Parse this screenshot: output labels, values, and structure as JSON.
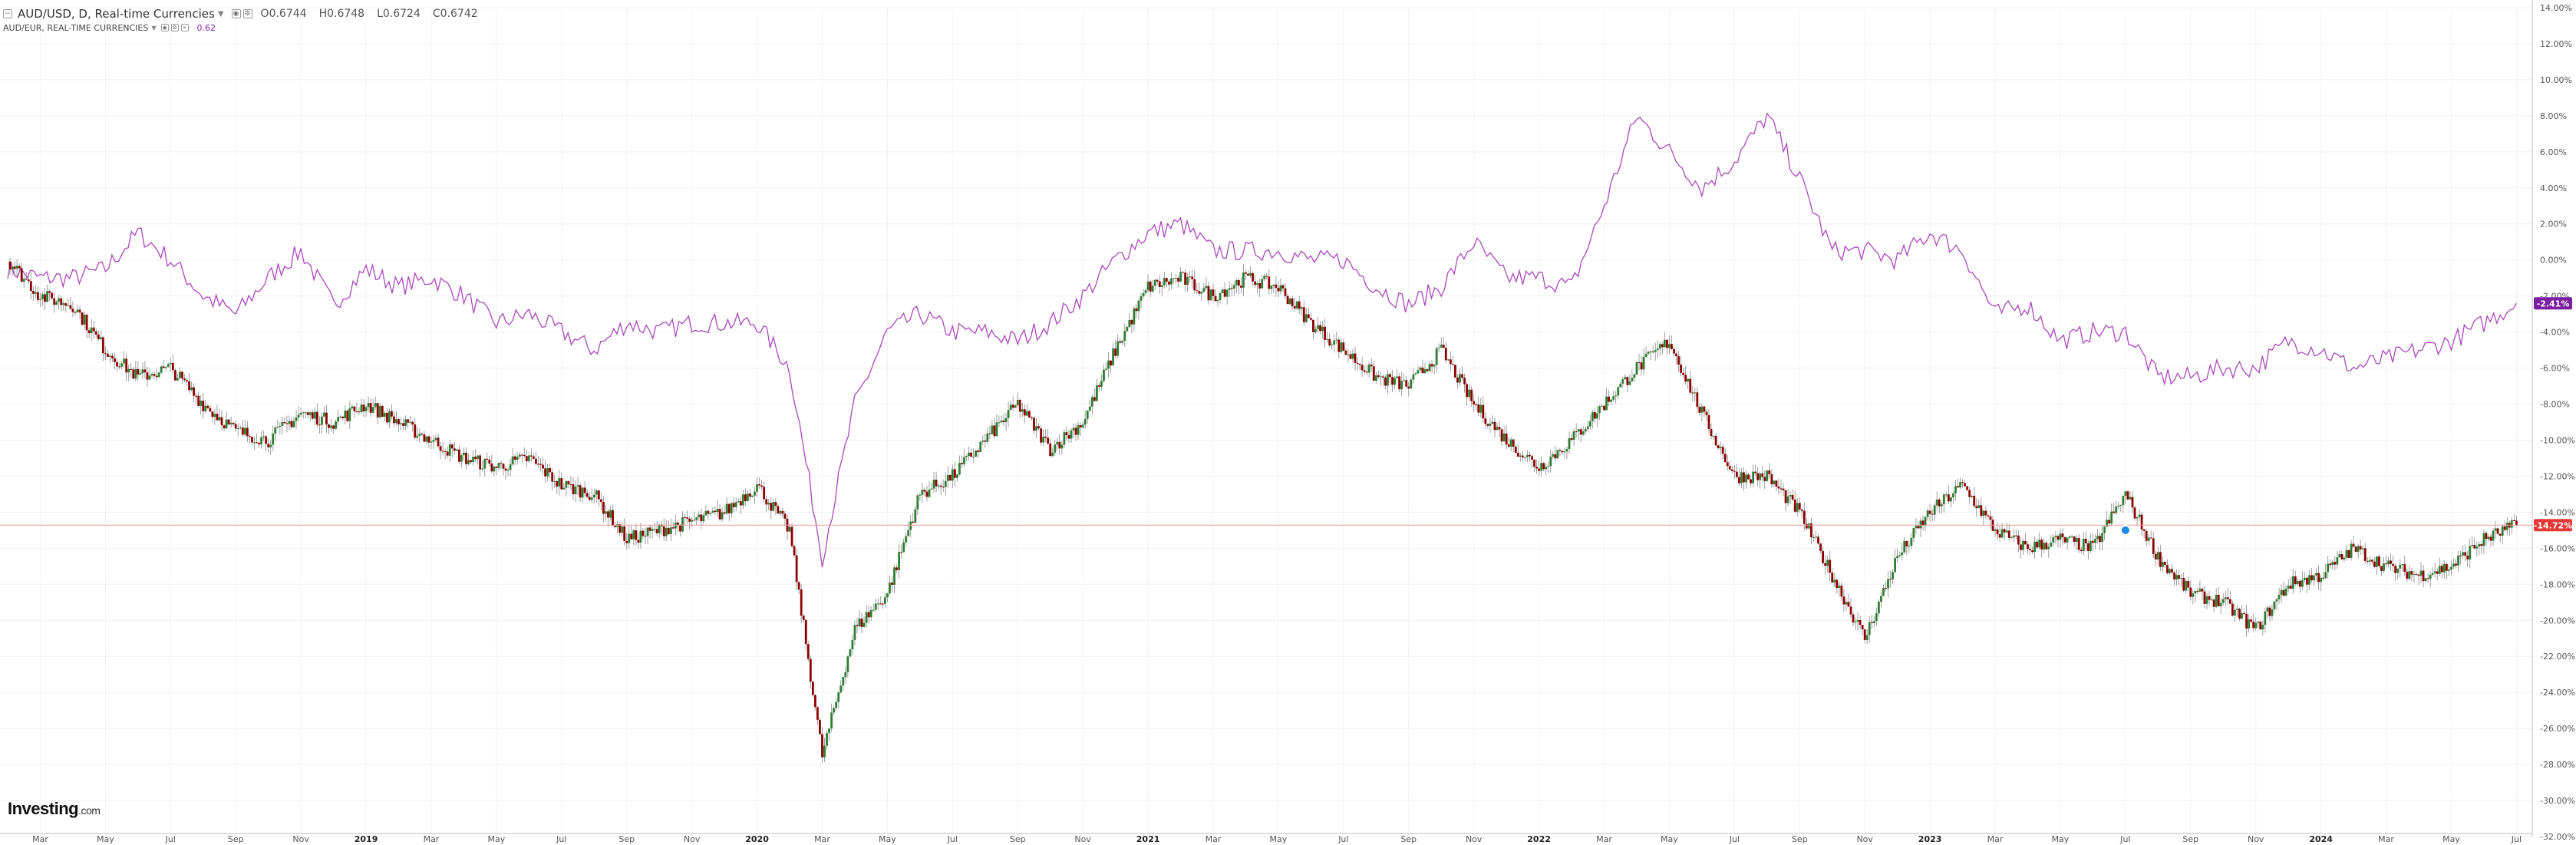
{
  "legend": {
    "main_symbol": "AUD/USD, D, Real-time Currencies",
    "open": "O0.6744",
    "high": "H0.6748",
    "low": "L0.6724",
    "close": "C0.6742",
    "sub_symbol": "AUD/EUR, REAL-TIME CURRENCIES",
    "sub_value": "0.62"
  },
  "logo": {
    "brand": "Investing",
    "suffix": ".com"
  },
  "colors": {
    "up": "#2e7d32",
    "down": "#8b0000",
    "compare": "#ab47bc",
    "last_label": "#e53935",
    "compare_label": "#7b1fa2",
    "hline": "#ef9a9a"
  },
  "chart_data": {
    "type": "line",
    "title": "AUD/USD, D, Real-time Currencies",
    "xlabel": "",
    "ylabel": "",
    "y_unit": "percent change",
    "ylim": [
      -32,
      14
    ],
    "y_ticks": [
      "14.00%",
      "12.00%",
      "10.00%",
      "8.00%",
      "6.00%",
      "4.00%",
      "2.00%",
      "0.00%",
      "-2.00%",
      "-4.00%",
      "-6.00%",
      "-8.00%",
      "-10.00%",
      "-12.00%",
      "-14.00%",
      "-16.00%",
      "-18.00%",
      "-20.00%",
      "-22.00%",
      "-24.00%",
      "-26.00%",
      "-28.00%",
      "-30.00%",
      "-32.00%"
    ],
    "x_ticks": [
      "Mar",
      "May",
      "Jul",
      "Sep",
      "Nov",
      "2019",
      "Mar",
      "May",
      "Jul",
      "Sep",
      "Nov",
      "2020",
      "Mar",
      "May",
      "Jul",
      "Sep",
      "Nov",
      "2021",
      "Mar",
      "May",
      "Jul",
      "Sep",
      "Nov",
      "2022",
      "Mar",
      "May",
      "Jul",
      "Sep",
      "Nov",
      "2023",
      "Mar",
      "May",
      "Jul",
      "Sep",
      "Nov",
      "2024",
      "Mar",
      "May",
      "Jul"
    ],
    "x_range": [
      "2018-02",
      "2024-07"
    ],
    "series": [
      {
        "name": "AUD/USD",
        "style": "candlestick",
        "x": [
          "2018-02",
          "2018-03",
          "2018-04",
          "2018-05",
          "2018-06",
          "2018-07",
          "2018-08",
          "2018-09",
          "2018-10",
          "2018-11",
          "2018-12",
          "2019-01",
          "2019-02",
          "2019-03",
          "2019-04",
          "2019-05",
          "2019-06",
          "2019-07",
          "2019-08",
          "2019-09",
          "2019-10",
          "2019-11",
          "2019-12",
          "2020-01",
          "2020-02",
          "2020-03",
          "2020-04",
          "2020-05",
          "2020-06",
          "2020-07",
          "2020-08",
          "2020-09",
          "2020-10",
          "2020-11",
          "2020-12",
          "2021-01",
          "2021-02",
          "2021-03",
          "2021-04",
          "2021-05",
          "2021-06",
          "2021-07",
          "2021-08",
          "2021-09",
          "2021-10",
          "2021-11",
          "2021-12",
          "2022-01",
          "2022-02",
          "2022-03",
          "2022-04",
          "2022-05",
          "2022-06",
          "2022-07",
          "2022-08",
          "2022-09",
          "2022-10",
          "2022-11",
          "2022-12",
          "2023-01",
          "2023-02",
          "2023-03",
          "2023-04",
          "2023-05",
          "2023-06",
          "2023-07",
          "2023-08",
          "2023-09",
          "2023-10",
          "2023-11",
          "2023-12",
          "2024-01",
          "2024-02",
          "2024-03",
          "2024-04",
          "2024-05",
          "2024-06",
          "2024-07"
        ],
        "values": [
          0.0,
          -2.0,
          -2.5,
          -5.0,
          -6.5,
          -6.0,
          -8.0,
          -9.5,
          -10.0,
          -8.5,
          -9.0,
          -8.0,
          -9.0,
          -10.0,
          -11.0,
          -11.5,
          -11.0,
          -12.5,
          -13.0,
          -15.5,
          -15.0,
          -14.5,
          -14.0,
          -12.5,
          -15.0,
          -27.5,
          -20.5,
          -18.5,
          -13.0,
          -12.0,
          -10.0,
          -8.0,
          -10.5,
          -9.0,
          -5.0,
          -1.5,
          -1.0,
          -2.0,
          -1.0,
          -1.5,
          -3.5,
          -5.0,
          -6.5,
          -7.0,
          -5.0,
          -8.0,
          -10.0,
          -11.5,
          -10.0,
          -8.0,
          -6.0,
          -4.5,
          -8.5,
          -12.0,
          -12.0,
          -14.0,
          -17.5,
          -21.0,
          -16.5,
          -14.0,
          -12.5,
          -15.0,
          -16.0,
          -15.5,
          -16.0,
          -13.0,
          -16.5,
          -18.5,
          -19.0,
          -20.5,
          -18.0,
          -17.5,
          -16.0,
          -17.0,
          -17.5,
          -17.0,
          -15.5,
          -14.72
        ]
      },
      {
        "name": "AUD/EUR",
        "style": "line",
        "x": [
          "2018-02",
          "2018-03",
          "2018-04",
          "2018-05",
          "2018-06",
          "2018-07",
          "2018-08",
          "2018-09",
          "2018-10",
          "2018-11",
          "2018-12",
          "2019-01",
          "2019-02",
          "2019-03",
          "2019-04",
          "2019-05",
          "2019-06",
          "2019-07",
          "2019-08",
          "2019-09",
          "2019-10",
          "2019-11",
          "2019-12",
          "2020-01",
          "2020-02",
          "2020-03",
          "2020-04",
          "2020-05",
          "2020-06",
          "2020-07",
          "2020-08",
          "2020-09",
          "2020-10",
          "2020-11",
          "2020-12",
          "2021-01",
          "2021-02",
          "2021-03",
          "2021-04",
          "2021-05",
          "2021-06",
          "2021-07",
          "2021-08",
          "2021-09",
          "2021-10",
          "2021-11",
          "2021-12",
          "2022-01",
          "2022-02",
          "2022-03",
          "2022-04",
          "2022-05",
          "2022-06",
          "2022-07",
          "2022-08",
          "2022-09",
          "2022-10",
          "2022-11",
          "2022-12",
          "2023-01",
          "2023-02",
          "2023-03",
          "2023-04",
          "2023-05",
          "2023-06",
          "2023-07",
          "2023-08",
          "2023-09",
          "2023-10",
          "2023-11",
          "2023-12",
          "2024-01",
          "2024-02",
          "2024-03",
          "2024-04",
          "2024-05",
          "2024-06",
          "2024-07"
        ],
        "values": [
          -0.5,
          -1.0,
          -1.0,
          -0.5,
          1.5,
          0.0,
          -2.0,
          -3.0,
          -1.0,
          0.5,
          -2.5,
          -0.5,
          -1.5,
          -1.0,
          -2.0,
          -3.5,
          -3.0,
          -4.0,
          -5.0,
          -3.5,
          -4.0,
          -3.5,
          -3.5,
          -3.5,
          -6.0,
          -16.5,
          -8.0,
          -4.0,
          -3.0,
          -4.0,
          -4.0,
          -4.5,
          -3.5,
          -2.0,
          0.0,
          1.5,
          2.0,
          0.5,
          0.5,
          0.5,
          0.0,
          0.0,
          -1.5,
          -2.5,
          -1.5,
          1.0,
          -1.0,
          -1.0,
          -1.5,
          3.0,
          8.0,
          6.0,
          4.0,
          5.5,
          8.0,
          4.5,
          0.5,
          0.5,
          0.0,
          1.5,
          0.5,
          -3.0,
          -2.5,
          -4.5,
          -4.0,
          -4.0,
          -6.5,
          -6.5,
          -6.0,
          -6.0,
          -4.5,
          -5.0,
          -6.0,
          -5.5,
          -5.0,
          -4.5,
          -3.5,
          -2.41
        ]
      }
    ],
    "last_value_labels": [
      {
        "series": "AUD/EUR",
        "label": "-2.41%"
      },
      {
        "series": "AUD/USD",
        "label": "-14.72%"
      }
    ],
    "grid": true,
    "scale": "percent"
  }
}
